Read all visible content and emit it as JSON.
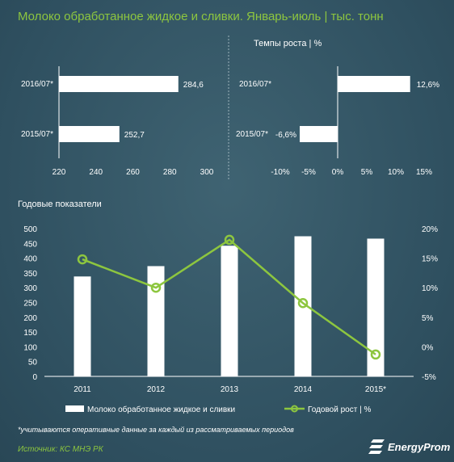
{
  "title": "Молоко обработанное жидкое и сливки. Январь-июль  | тыс. тонн",
  "growth_title": "Темпы роста  | %",
  "annual_title": "Годовые показатели",
  "footnote": "*учитываются оперативные данные за каждый из рассматриваемых периодов",
  "source": "Источник: КС МНЭ РК",
  "logo_text": "EnergyProm",
  "colors": {
    "accent": "#8dc63f",
    "bar": "#ffffff",
    "background": "#335563"
  },
  "chart_data": [
    {
      "type": "bar",
      "orientation": "horizontal",
      "categories": [
        "2016/07*",
        "2015/07*"
      ],
      "values": [
        284.6,
        252.7
      ],
      "value_labels": [
        "284,6",
        "252,7"
      ],
      "xlim": [
        220,
        300
      ],
      "xticks": [
        "220",
        "240",
        "260",
        "280",
        "300"
      ]
    },
    {
      "type": "bar",
      "orientation": "horizontal",
      "title": "Темпы роста  | %",
      "categories": [
        "2016/07*",
        "2015/07*"
      ],
      "values": [
        12.6,
        -6.6
      ],
      "value_labels": [
        "12,6%",
        "-6,6%"
      ],
      "xlim": [
        -15,
        15
      ],
      "xticks": [
        "-10%",
        "-5%",
        "0%",
        "5%",
        "10%",
        "15%"
      ]
    },
    {
      "type": "bar",
      "title": "Годовые показатели",
      "categories": [
        "2011",
        "2012",
        "2013",
        "2014",
        "2015*"
      ],
      "series": [
        {
          "name": "Молоко обработанное жидкое и сливки",
          "type": "bar",
          "values": [
            338,
            373,
            442,
            474,
            466
          ]
        },
        {
          "name": "Годовой рост | %",
          "type": "line",
          "axis": "right",
          "values": [
            14.8,
            10.0,
            18.1,
            7.4,
            -1.3
          ]
        }
      ],
      "ylim": [
        0,
        500
      ],
      "yticks": [
        "0",
        "50",
        "100",
        "150",
        "200",
        "250",
        "300",
        "350",
        "400",
        "450",
        "500"
      ],
      "y2lim": [
        -5,
        20
      ],
      "y2ticks": [
        "-5%",
        "0%",
        "5%",
        "10%",
        "15%",
        "20%"
      ],
      "legend": "bottom"
    }
  ]
}
